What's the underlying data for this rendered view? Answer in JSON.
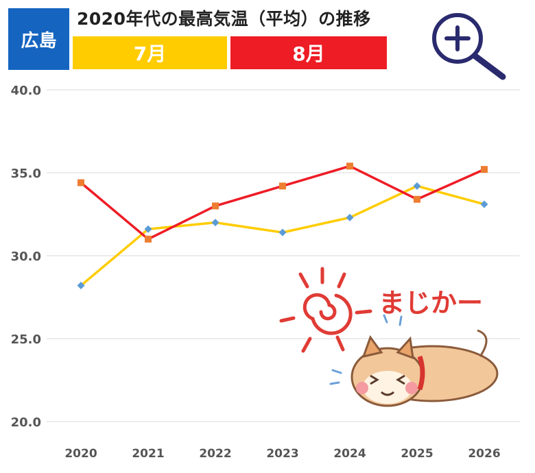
{
  "header": {
    "region": "広島",
    "title": "2020年代の最高気温（平均）の推移",
    "zoom_icon": "magnifier-plus-icon"
  },
  "illustration": {
    "caption": "まじかー",
    "icons": [
      "sun-icon",
      "dog-icon"
    ]
  },
  "chart_data": {
    "type": "line",
    "categories": [
      "2020",
      "2021",
      "2022",
      "2023",
      "2024",
      "2025",
      "2026"
    ],
    "series": [
      {
        "name": "7月",
        "color": "#ffcc00",
        "marker_color": "#5b9bd5",
        "marker": "diamond",
        "values": [
          28.2,
          31.6,
          32.0,
          31.4,
          32.3,
          34.2,
          33.1
        ]
      },
      {
        "name": "8月",
        "color": "#ee1c25",
        "marker_color": "#ed7d31",
        "marker": "square",
        "values": [
          34.4,
          31.0,
          33.0,
          34.2,
          35.4,
          33.4,
          35.2
        ]
      }
    ],
    "ylim": [
      20.0,
      40.0
    ],
    "yticks": [
      "40.0",
      "35.0",
      "30.0",
      "25.0",
      "20.0"
    ],
    "grid": true,
    "legend": "top"
  }
}
